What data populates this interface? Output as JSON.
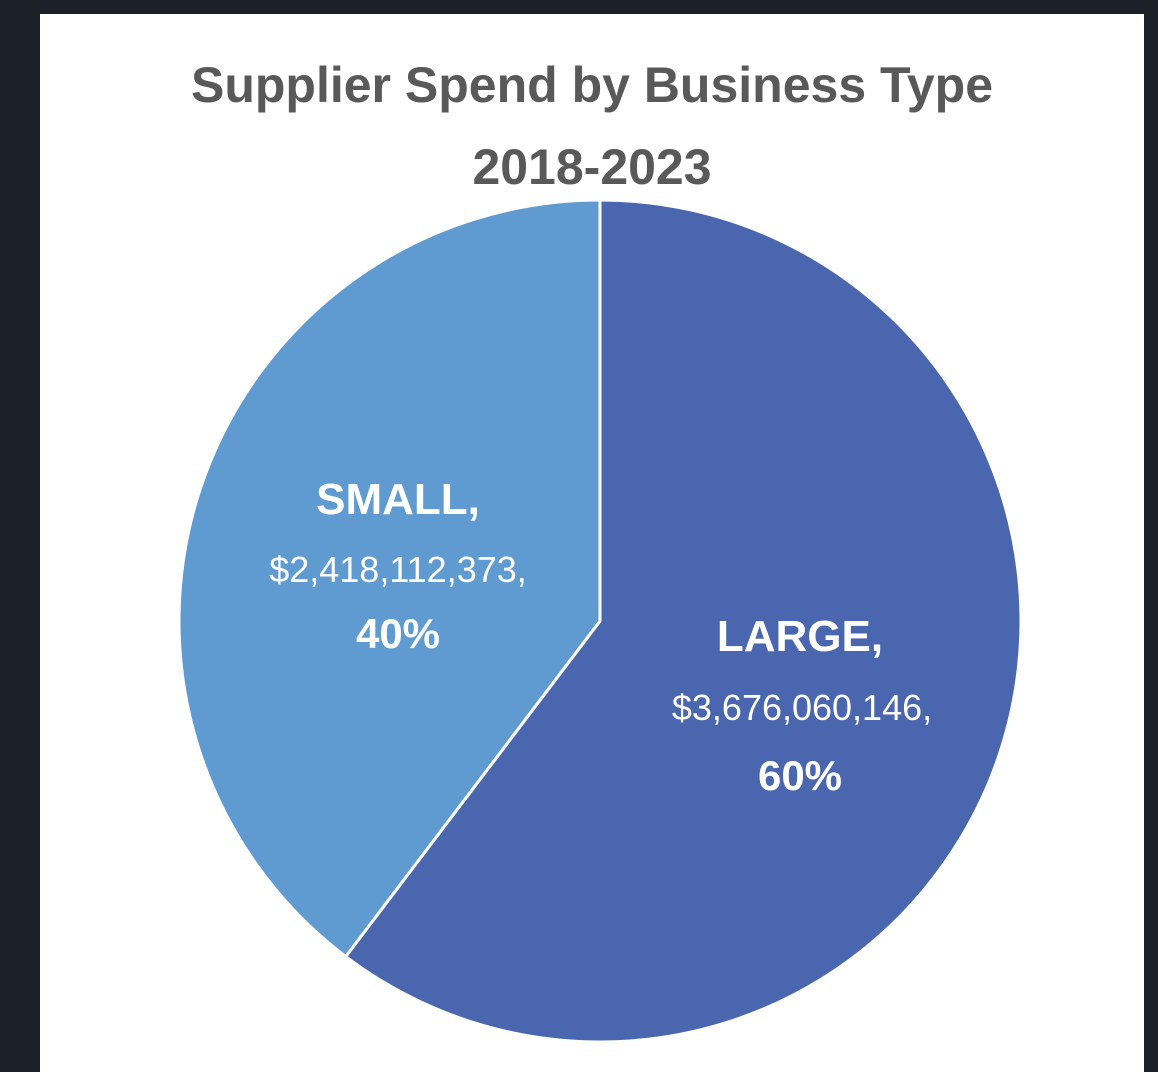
{
  "chart_data": {
    "type": "pie",
    "title_line1": "Supplier Spend by Business Type",
    "title_line2": "2018-2023",
    "slices": [
      {
        "name": "SMALL",
        "value": 2418112373,
        "value_label": "$2,418,112,373,",
        "percent_label": "40%",
        "color": "#5f9bd1"
      },
      {
        "name": "LARGE",
        "value": 3676060146,
        "value_label": "$3,676,060,146,",
        "percent_label": "60%",
        "color": "#4a66ae"
      }
    ],
    "start_angle_deg": 0,
    "direction": "clockwise_from_top_large_first"
  },
  "colors": {
    "background": "#ffffff",
    "frame": "#1b2029",
    "title": "#595959",
    "slice_border": "#ffffff"
  }
}
